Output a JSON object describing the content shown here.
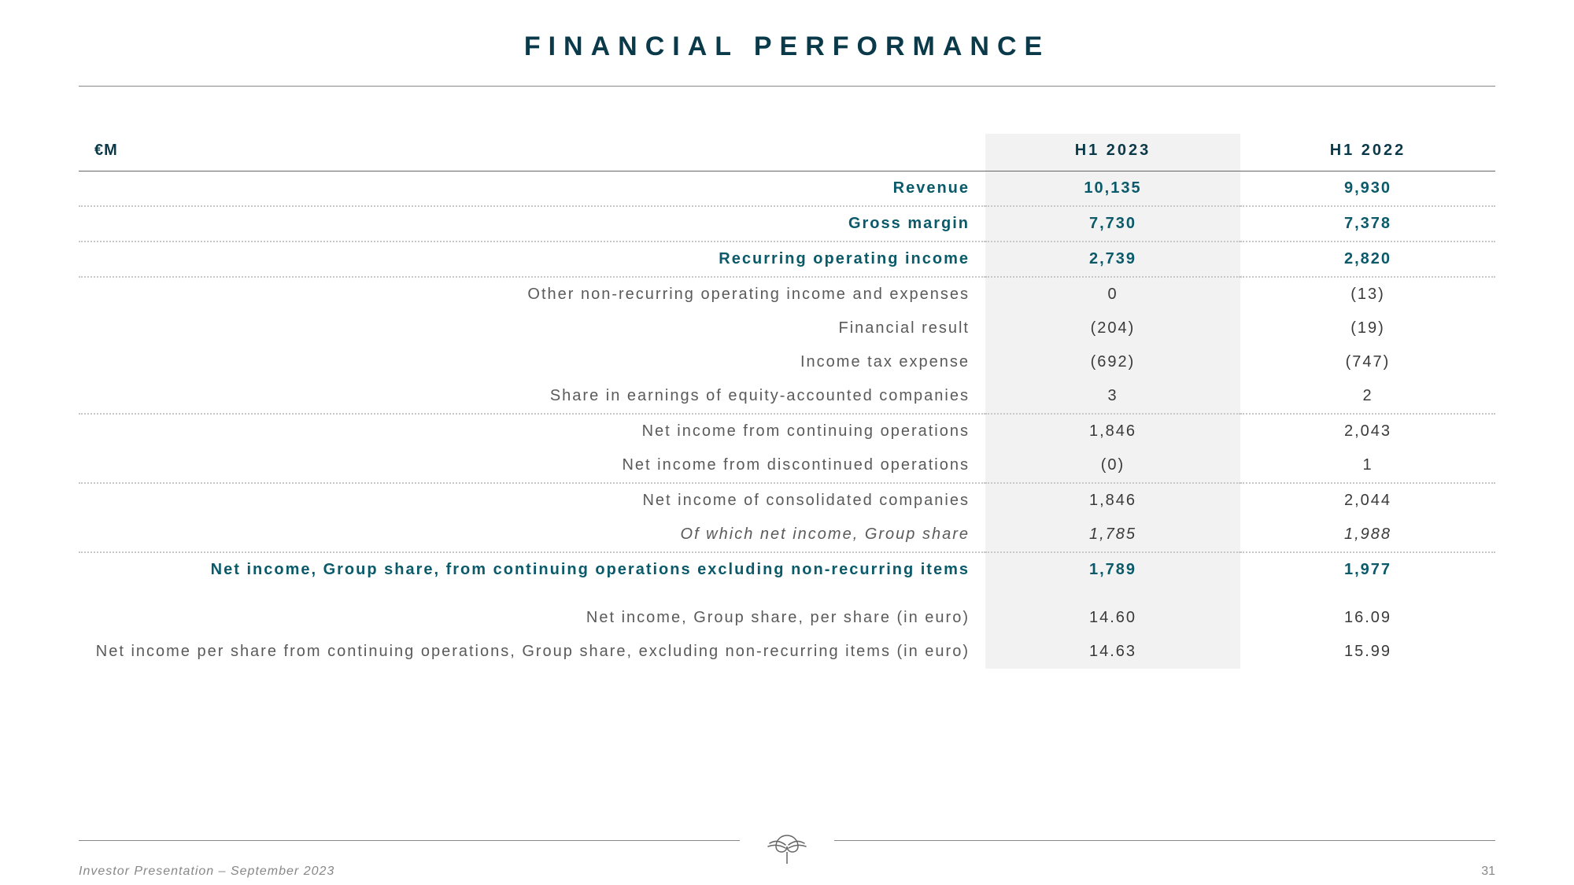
{
  "title": "FINANCIAL PERFORMANCE",
  "header": {
    "unit": "€M",
    "col1": "H1 2023",
    "col2": "H1 2022"
  },
  "rows": [
    {
      "label": "Revenue",
      "v1": "10,135",
      "v2": "9,930",
      "highlight": true,
      "dotted": true
    },
    {
      "label": "Gross margin",
      "v1": "7,730",
      "v2": "7,378",
      "highlight": true,
      "dotted": true
    },
    {
      "label": "Recurring operating income",
      "v1": "2,739",
      "v2": "2,820",
      "highlight": true,
      "dotted": true
    },
    {
      "label": "Other non-recurring operating income and expenses",
      "v1": "0",
      "v2": "(13)"
    },
    {
      "label": "Financial result",
      "v1": "(204)",
      "v2": "(19)"
    },
    {
      "label": "Income tax expense",
      "v1": "(692)",
      "v2": "(747)"
    },
    {
      "label": "Share in earnings of equity-accounted companies",
      "v1": "3",
      "v2": "2",
      "dotted": true
    },
    {
      "label": "Net income from continuing operations",
      "v1": "1,846",
      "v2": "2,043"
    },
    {
      "label": "Net income from discontinued operations",
      "v1": "(0)",
      "v2": "1",
      "dotted": true
    },
    {
      "label": "Net income of consolidated companies",
      "v1": "1,846",
      "v2": "2,044"
    },
    {
      "label": "Of which net income, Group share",
      "v1": "1,785",
      "v2": "1,988",
      "italic": true,
      "dotted": true
    },
    {
      "label": "Net income, Group share, from continuing operations excluding non-recurring items",
      "v1": "1,789",
      "v2": "1,977",
      "highlight": true
    },
    {
      "label": "Net income, Group share, per share (in euro)",
      "v1": "14.60",
      "v2": "16.09",
      "gap": true
    },
    {
      "label": "Net income per share from continuing operations, Group share, excluding non-recurring items (in euro)",
      "v1": "14.63",
      "v2": "15.99"
    }
  ],
  "footer": {
    "text": "Investor Presentation – September 2023",
    "page": "31"
  },
  "colors": {
    "accent": "#0a5a6a",
    "text_muted": "#5a5a5a",
    "shade": "#f2f2f2",
    "border": "#888888",
    "dotted": "#c8c8c8"
  }
}
